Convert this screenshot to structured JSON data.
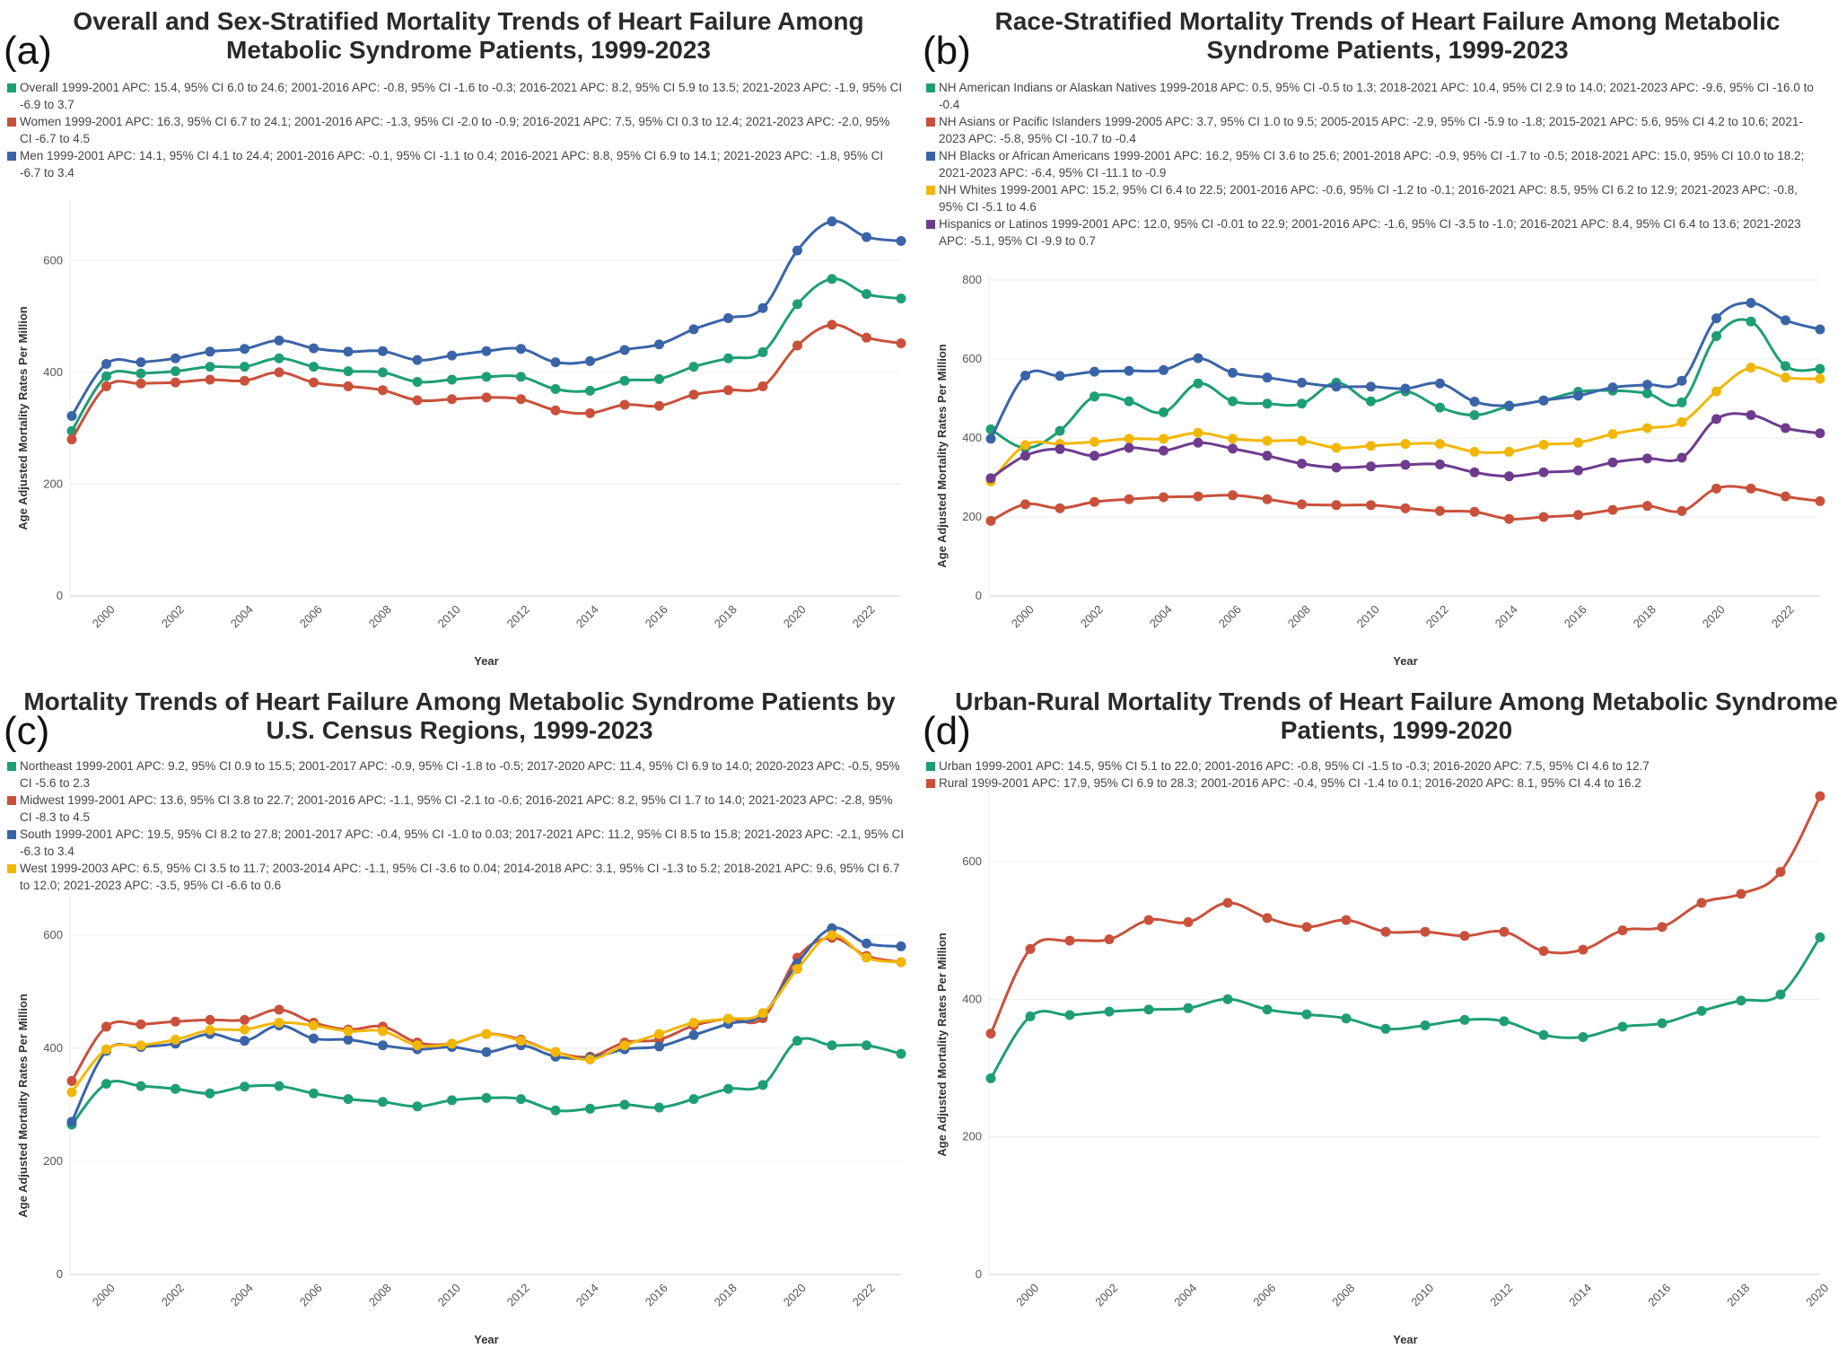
{
  "chart_data": [
    {
      "id": "a",
      "type": "line",
      "letter": "(a)",
      "title": "Overall and Sex-Stratified Mortality Trends of Heart Failure Among Metabolic Syndrome Patients, 1999-2023",
      "xlabel": "Year",
      "ylabel": "Age Adjusted Mortality Rates Per Million",
      "xlim": [
        1999,
        2023
      ],
      "ylim": [
        0,
        700
      ],
      "yticks": [
        0,
        200,
        400,
        600
      ],
      "xticks": [
        2000,
        2002,
        2004,
        2006,
        2008,
        2010,
        2012,
        2014,
        2016,
        2018,
        2020,
        2022
      ],
      "x": [
        1999,
        2000,
        2001,
        2002,
        2003,
        2004,
        2005,
        2006,
        2007,
        2008,
        2009,
        2010,
        2011,
        2012,
        2013,
        2014,
        2015,
        2016,
        2017,
        2018,
        2019,
        2020,
        2021,
        2022,
        2023
      ],
      "series": [
        {
          "name": "Overall",
          "color": "#1e9e75",
          "legend": "Overall 1999-2001 APC: 15.4, 95% CI 6.0 to 24.6; 2001-2016 APC: -0.8, 95% CI -1.6 to -0.3; 2016-2021 APC: 8.2, 95% CI 5.9 to 13.5; 2021-2023 APC: -1.9, 95% CI -6.9 to 3.7",
          "values": [
            295,
            393,
            398,
            402,
            410,
            410,
            425,
            410,
            402,
            400,
            383,
            387,
            392,
            392,
            370,
            367,
            385,
            388,
            410,
            425,
            436,
            522,
            567,
            540,
            532
          ]
        },
        {
          "name": "Women",
          "color": "#c9513b",
          "legend": "Women 1999-2001 APC: 16.3, 95% CI 6.7 to 24.1; 2001-2016 APC: -1.3, 95% CI -2.0 to -0.9; 2016-2021 APC: 7.5, 95% CI 0.3 to 12.4; 2021-2023 APC: -2.0, 95% CI -6.7 to 4.5",
          "values": [
            280,
            375,
            380,
            382,
            387,
            385,
            400,
            382,
            375,
            368,
            350,
            352,
            355,
            352,
            332,
            327,
            342,
            340,
            360,
            368,
            375,
            448,
            485,
            462,
            452
          ]
        },
        {
          "name": "Men",
          "color": "#3a64a8",
          "legend": "Men 1999-2001 APC: 14.1, 95% CI 4.1 to 24.4; 2001-2016 APC: -0.1, 95% CI -1.1 to 0.4; 2016-2021 APC: 8.8, 95% CI 6.9 to 14.1; 2021-2023 APC: -1.8, 95% CI -6.7 to 3.4",
          "values": [
            322,
            415,
            418,
            425,
            437,
            442,
            457,
            443,
            437,
            438,
            422,
            430,
            438,
            442,
            418,
            420,
            440,
            450,
            477,
            497,
            515,
            618,
            670,
            642,
            635
          ]
        }
      ]
    },
    {
      "id": "b",
      "type": "line",
      "letter": "(b)",
      "title": "Race-Stratified Mortality Trends of Heart Failure Among Metabolic Syndrome Patients, 1999-2023",
      "xlabel": "Year",
      "ylabel": "Age Adjusted Mortality Rates Per Million",
      "xlim": [
        1999,
        2023
      ],
      "ylim": [
        0,
        800
      ],
      "yticks": [
        0,
        200,
        400,
        600,
        800
      ],
      "xticks": [
        2000,
        2002,
        2004,
        2006,
        2008,
        2010,
        2012,
        2014,
        2016,
        2018,
        2020,
        2022
      ],
      "x": [
        1999,
        2000,
        2001,
        2002,
        2003,
        2004,
        2005,
        2006,
        2007,
        2008,
        2009,
        2010,
        2011,
        2012,
        2013,
        2014,
        2015,
        2016,
        2017,
        2018,
        2019,
        2020,
        2021,
        2022,
        2023
      ],
      "series": [
        {
          "name": "NH American Indians or Alaskan Natives",
          "color": "#1e9e75",
          "legend": "NH American Indians or Alaskan Natives 1999-2018 APC: 0.5, 95% CI -0.5 to 1.3; 2018-2021 APC: 10.4, 95% CI 2.9 to 14.0; 2021-2023 APC: -9.6, 95% CI -16.0 to -0.4",
          "values": [
            422,
            375,
            418,
            505,
            493,
            465,
            538,
            493,
            487,
            487,
            540,
            493,
            518,
            477,
            458,
            480,
            495,
            517,
            520,
            513,
            490,
            658,
            695,
            582,
            575
          ]
        },
        {
          "name": "NH Asians or Pacific Islanders",
          "color": "#c9513b",
          "legend": "NH Asians or Pacific Islanders 1999-2005 APC: 3.7, 95% CI 1.0 to 9.5; 2005-2015 APC: -2.9, 95% CI -5.9 to -1.8; 2015-2021 APC: 5.6, 95% CI 4.2 to 10.6; 2021-2023 APC: -5.8, 95% CI -10.7 to -0.4",
          "values": [
            190,
            232,
            222,
            238,
            245,
            250,
            252,
            255,
            245,
            232,
            230,
            230,
            222,
            215,
            213,
            195,
            200,
            205,
            218,
            228,
            215,
            272,
            272,
            252,
            240
          ]
        },
        {
          "name": "NH Blacks or African Americans",
          "color": "#3a64a8",
          "legend": "NH Blacks or African Americans 1999-2001 APC: 16.2, 95% CI 3.6 to 25.6; 2001-2018 APC: -0.9, 95% CI -1.7 to -0.5; 2018-2021 APC: 15.0, 95% CI 10.0 to 18.2; 2021-2023 APC: -6.4, 95% CI -11.1 to -0.9",
          "values": [
            398,
            558,
            557,
            568,
            570,
            572,
            602,
            565,
            553,
            540,
            530,
            530,
            525,
            538,
            492,
            482,
            495,
            507,
            528,
            535,
            545,
            703,
            742,
            698,
            675
          ]
        },
        {
          "name": "NH Whites",
          "color": "#f2b705",
          "legend": "NH Whites 1999-2001 APC: 15.2, 95% CI 6.4 to 22.5; 2001-2016 APC: -0.6, 95% CI -1.2 to -0.1; 2016-2021 APC: 8.5, 95% CI 6.2 to 12.9; 2021-2023 APC: -0.8, 95% CI -5.1 to 4.6",
          "values": [
            290,
            382,
            385,
            390,
            398,
            398,
            413,
            398,
            393,
            393,
            375,
            380,
            385,
            385,
            365,
            365,
            383,
            388,
            410,
            425,
            440,
            518,
            578,
            553,
            550
          ]
        },
        {
          "name": "Hispanics or Latinos",
          "color": "#6e3b8e",
          "legend": "Hispanics or Latinos 1999-2001 APC: 12.0, 95% CI -0.01 to 22.9; 2001-2016 APC: -1.6, 95% CI -3.5 to -1.0; 2016-2021 APC: 8.4, 95% CI 6.4 to 13.6; 2021-2023 APC: -5.1, 95% CI -9.9 to 0.7",
          "values": [
            298,
            355,
            372,
            355,
            375,
            368,
            388,
            373,
            355,
            335,
            325,
            328,
            332,
            333,
            313,
            303,
            313,
            318,
            338,
            348,
            350,
            448,
            458,
            425,
            412
          ]
        }
      ]
    },
    {
      "id": "c",
      "type": "line",
      "letter": "(c)",
      "title": "Mortality Trends of Heart Failure Among Metabolic Syndrome Patients by U.S. Census Regions, 1999-2023",
      "xlabel": "Year",
      "ylabel": "Age Adjusted Mortality Rates Per Million",
      "xlim": [
        1999,
        2023
      ],
      "ylim": [
        0,
        660
      ],
      "yticks": [
        0,
        200,
        400,
        600
      ],
      "xticks": [
        2000,
        2002,
        2004,
        2006,
        2008,
        2010,
        2012,
        2014,
        2016,
        2018,
        2020,
        2022
      ],
      "x": [
        1999,
        2000,
        2001,
        2002,
        2003,
        2004,
        2005,
        2006,
        2007,
        2008,
        2009,
        2010,
        2011,
        2012,
        2013,
        2014,
        2015,
        2016,
        2017,
        2018,
        2019,
        2020,
        2021,
        2022,
        2023
      ],
      "series": [
        {
          "name": "Northeast",
          "color": "#1e9e75",
          "legend": "Northeast 1999-2001 APC: 9.2, 95% CI 0.9 to 15.5; 2001-2017 APC: -0.9, 95% CI -1.8 to -0.5; 2017-2020 APC: 11.4, 95% CI 6.9 to 14.0; 2020-2023 APC: -0.5, 95% CI -5.6 to 2.3",
          "values": [
            265,
            337,
            333,
            328,
            320,
            332,
            333,
            320,
            310,
            305,
            297,
            308,
            312,
            310,
            290,
            293,
            300,
            295,
            310,
            328,
            335,
            413,
            405,
            405,
            390
          ]
        },
        {
          "name": "Midwest",
          "color": "#c9513b",
          "legend": "Midwest 1999-2001 APC: 13.6, 95% CI 3.8 to 22.7; 2001-2016 APC: -1.1, 95% CI -2.1 to -0.6; 2016-2021 APC: 8.2, 95% CI 1.7 to 14.0; 2021-2023 APC: -2.8, 95% CI -8.3 to 4.5",
          "values": [
            342,
            438,
            442,
            447,
            450,
            450,
            468,
            445,
            433,
            438,
            410,
            408,
            425,
            415,
            393,
            385,
            410,
            415,
            440,
            452,
            453,
            560,
            595,
            563,
            552
          ]
        },
        {
          "name": "South",
          "color": "#3a64a8",
          "legend": "South 1999-2001 APC: 19.5, 95% CI 8.2 to 27.8; 2001-2017 APC: -0.4, 95% CI -1.0 to 0.03; 2017-2021 APC: 11.2, 95% CI 8.5 to 15.8; 2021-2023 APC: -2.1, 95% CI -6.3 to 3.4",
          "values": [
            270,
            395,
            402,
            408,
            425,
            413,
            440,
            417,
            415,
            405,
            398,
            402,
            393,
            405,
            385,
            383,
            398,
            403,
            423,
            443,
            460,
            550,
            612,
            585,
            580
          ]
        },
        {
          "name": "West",
          "color": "#f2b705",
          "legend": "West 1999-2003 APC: 6.5, 95% CI 3.5 to 11.7; 2003-2014 APC: -1.1, 95% CI -3.6 to 0.04; 2014-2018 APC: 3.1, 95% CI -1.3 to 5.2; 2018-2021 APC: 9.6, 95% CI 6.7 to 12.0; 2021-2023 APC: -3.5, 95% CI -6.6 to 0.6",
          "values": [
            322,
            398,
            405,
            415,
            432,
            433,
            445,
            440,
            430,
            430,
            405,
            408,
            425,
            413,
            393,
            380,
            405,
            425,
            445,
            452,
            462,
            540,
            600,
            560,
            552
          ]
        }
      ]
    },
    {
      "id": "d",
      "type": "line",
      "letter": "(d)",
      "title": "Urban-Rural Mortality Trends of Heart Failure Among Metabolic Syndrome Patients, 1999-2020",
      "xlabel": "Year",
      "ylabel": "Age Adjusted Mortality Rates Per Million",
      "xlim": [
        1999,
        2020
      ],
      "ylim": [
        0,
        720
      ],
      "yticks": [
        0,
        200,
        400,
        600
      ],
      "xticks": [
        2000,
        2002,
        2004,
        2006,
        2008,
        2010,
        2012,
        2014,
        2016,
        2018,
        2020
      ],
      "x": [
        1999,
        2000,
        2001,
        2002,
        2003,
        2004,
        2005,
        2006,
        2007,
        2008,
        2009,
        2010,
        2011,
        2012,
        2013,
        2014,
        2015,
        2016,
        2017,
        2018,
        2019,
        2020
      ],
      "series": [
        {
          "name": "Urban",
          "color": "#1e9e75",
          "legend": "Urban 1999-2001 APC: 14.5, 95% CI 5.1 to 22.0; 2001-2016 APC: -0.8, 95% CI -1.5 to -0.3; 2016-2020 APC: 7.5, 95% CI 4.6 to 12.7",
          "values": [
            285,
            375,
            377,
            382,
            385,
            387,
            400,
            385,
            378,
            372,
            357,
            362,
            370,
            368,
            348,
            345,
            360,
            365,
            383,
            398,
            407,
            490
          ]
        },
        {
          "name": "Rural",
          "color": "#c9513b",
          "legend": "Rural 1999-2001 APC: 17.9, 95% CI 6.9 to 28.3; 2001-2016 APC: -0.4, 95% CI -1.4 to 0.1; 2016-2020 APC: 8.1, 95% CI 4.4 to 16.2",
          "values": [
            350,
            473,
            485,
            487,
            515,
            512,
            540,
            518,
            505,
            515,
            498,
            498,
            492,
            498,
            470,
            472,
            500,
            505,
            540,
            553,
            585,
            695
          ]
        }
      ]
    }
  ]
}
